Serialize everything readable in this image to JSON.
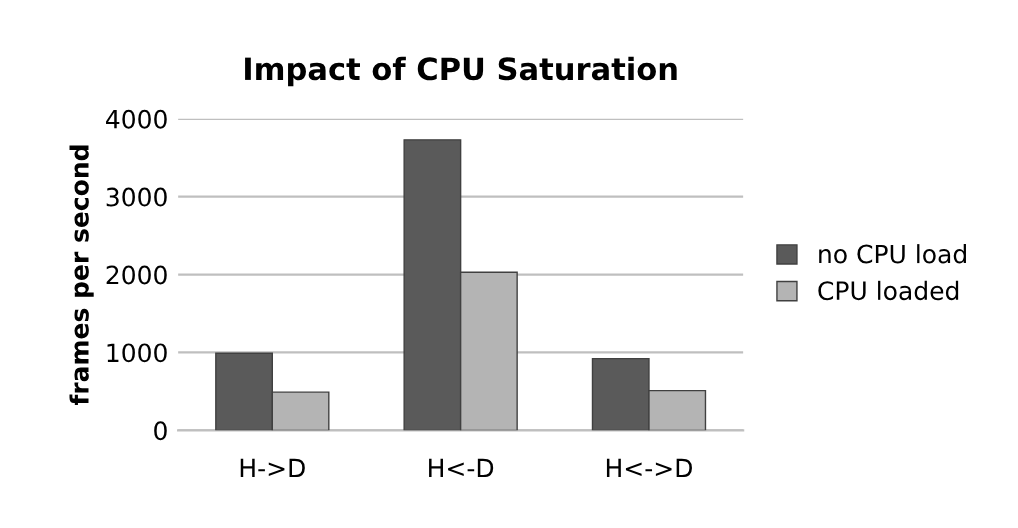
{
  "chart_data": {
    "type": "bar",
    "title": "Impact of CPU Saturation",
    "ylabel": "frames per second",
    "categories": [
      "H->D",
      "H<-D",
      "H<->D"
    ],
    "series": [
      {
        "name": "no CPU load",
        "color": "#5a5a5a",
        "values": [
          990,
          3730,
          920
        ]
      },
      {
        "name": "CPU loaded",
        "color": "#b4b4b4",
        "values": [
          490,
          2030,
          510
        ]
      }
    ],
    "ylim": [
      0,
      4000
    ],
    "yticks": [
      0,
      1000,
      2000,
      3000,
      4000
    ],
    "grid": "y",
    "legend": "right"
  }
}
